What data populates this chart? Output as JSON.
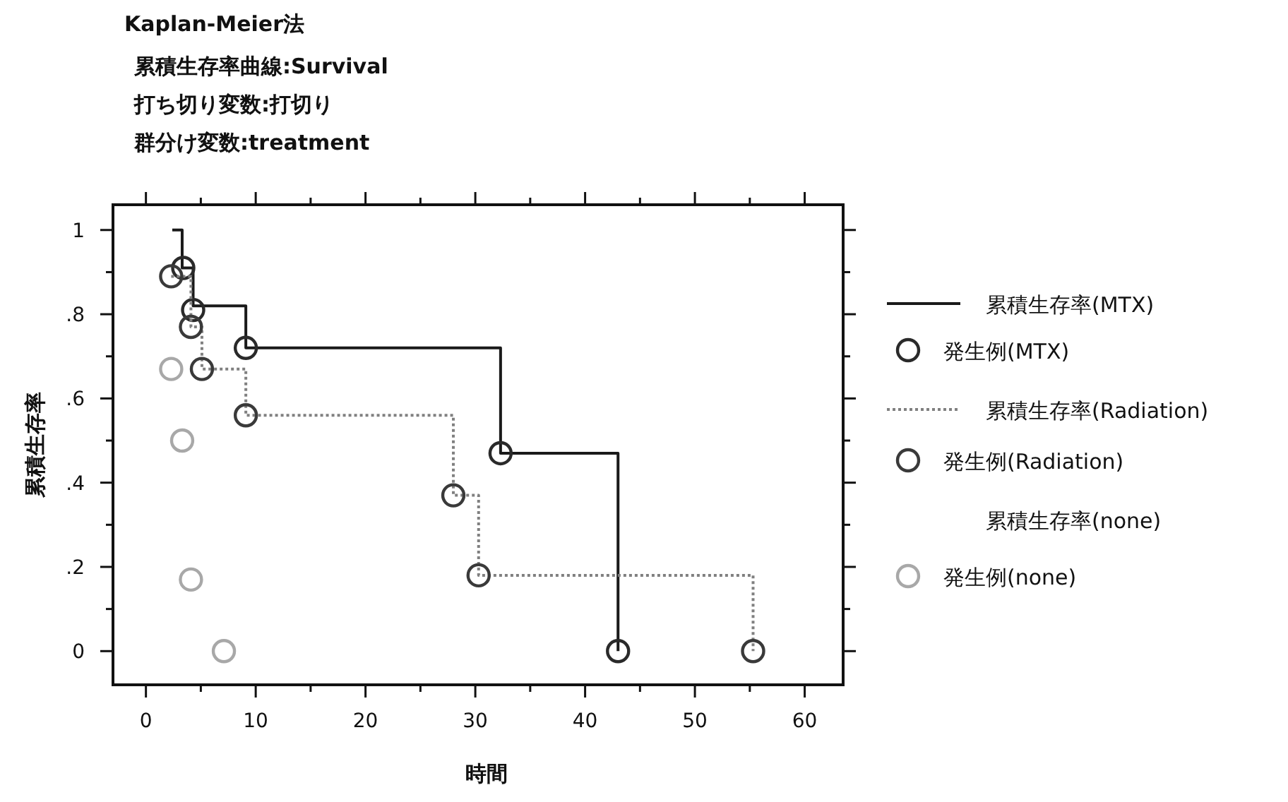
{
  "chart_data": {
    "type": "step",
    "title": "Kaplan-Meier法",
    "annotations": [
      "累積生存率曲線:Survival",
      "打ち切り変数:打切り",
      "群分け変数:treatment"
    ],
    "xlabel": "時間",
    "ylabel": "累積生存率",
    "xlim": [
      -3,
      63.5
    ],
    "ylim": [
      -0.08,
      1.06
    ],
    "xticks": [
      0,
      {
        "value": 5,
        "label": null
      },
      10,
      {
        "value": 15,
        "label": null
      },
      20,
      {
        "value": 25,
        "label": null
      },
      30,
      {
        "value": 35,
        "label": null
      },
      40,
      {
        "value": 45,
        "label": null
      },
      50,
      {
        "value": 55,
        "label": null
      },
      60
    ],
    "yticks": [
      0,
      {
        "value": 0.1,
        "label": null
      },
      {
        "value": 0.2,
        "label": ".2"
      },
      {
        "value": 0.3,
        "label": null
      },
      {
        "value": 0.4,
        "label": ".4"
      },
      {
        "value": 0.5,
        "label": null
      },
      {
        "value": 0.6,
        "label": ".6"
      },
      {
        "value": 0.7,
        "label": null
      },
      {
        "value": 0.8,
        "label": ".8"
      },
      {
        "value": 0.9,
        "label": null
      },
      1
    ],
    "legend": "right",
    "grid": false,
    "series": [
      {
        "name": "累積生存率(MTX)",
        "type": "step",
        "color": "#1a1a1a",
        "line_style": "solid",
        "x": [
          2.4,
          3.3,
          4.3,
          9.1,
          32.3,
          43.0
        ],
        "values": [
          1.0,
          0.91,
          0.82,
          0.72,
          0.47,
          0.0
        ]
      },
      {
        "name": "発生例(MTX)",
        "type": "scatter",
        "marker": "circle",
        "color": "#2a2a2a",
        "x": [
          3.4,
          4.3,
          9.1,
          32.3,
          43.0
        ],
        "values": [
          0.91,
          0.81,
          0.72,
          0.47,
          0.0
        ]
      },
      {
        "name": "累積生存率(Radiation)",
        "type": "step",
        "color": "#808080",
        "line_style": "dotted",
        "x": [
          2.3,
          4.1,
          5.1,
          9.1,
          28.0,
          30.3,
          55.3
        ],
        "values": [
          0.89,
          0.77,
          0.67,
          0.56,
          0.37,
          0.18,
          0.0
        ]
      },
      {
        "name": "発生例(Radiation)",
        "type": "scatter",
        "marker": "circle",
        "color": "#3a3a3a",
        "x": [
          2.3,
          4.1,
          5.1,
          9.1,
          28.0,
          30.3,
          55.3
        ],
        "values": [
          0.89,
          0.77,
          0.67,
          0.56,
          0.37,
          0.18,
          0.0
        ]
      },
      {
        "name": "累積生存率(none)",
        "type": "step",
        "color": null
      },
      {
        "name": "発生例(none)",
        "type": "scatter",
        "marker": "circle",
        "color": "#a8a8a8",
        "x": [
          2.3,
          3.3,
          4.1,
          7.1
        ],
        "values": [
          0.67,
          0.5,
          0.17,
          0.0
        ]
      }
    ]
  }
}
